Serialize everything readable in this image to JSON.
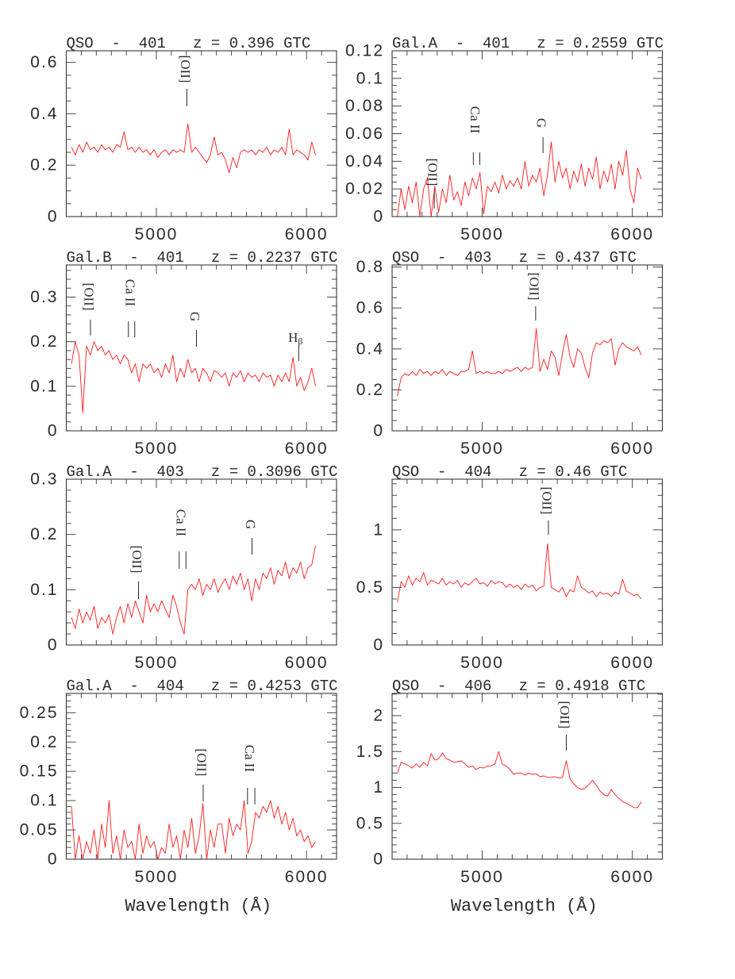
{
  "colors": {
    "spectrum": "#ff1a1a",
    "axes": "#3a3a3a"
  },
  "chart_data": [
    {
      "type": "line",
      "title": "QSO  -  401   z = 0.396 GTC",
      "xlim": [
        4400,
        6200
      ],
      "ylim": [
        0,
        0.645
      ],
      "xticks": [
        5000,
        6000
      ],
      "xtick_minor_step": 100,
      "yticks": [
        0,
        0.2,
        0.4,
        0.6
      ],
      "ytick_minor_step": 0.05,
      "wavelength_start": 4435,
      "wavelength_step": 25,
      "flux": [
        0.27,
        0.24,
        0.28,
        0.25,
        0.29,
        0.26,
        0.27,
        0.25,
        0.28,
        0.26,
        0.27,
        0.25,
        0.28,
        0.27,
        0.33,
        0.26,
        0.27,
        0.25,
        0.27,
        0.25,
        0.26,
        0.24,
        0.26,
        0.23,
        0.25,
        0.26,
        0.24,
        0.26,
        0.25,
        0.26,
        0.25,
        0.36,
        0.25,
        0.27,
        0.25,
        0.23,
        0.21,
        0.24,
        0.31,
        0.24,
        0.25,
        0.22,
        0.17,
        0.23,
        0.19,
        0.25,
        0.26,
        0.25,
        0.26,
        0.24,
        0.26,
        0.25,
        0.27,
        0.24,
        0.26,
        0.25,
        0.27,
        0.24,
        0.34,
        0.24,
        0.26,
        0.25,
        0.24,
        0.22,
        0.29,
        0.24
      ],
      "markers": [
        {
          "label": "[OII]",
          "wavelengths": [
            5203
          ]
        }
      ]
    },
    {
      "type": "line",
      "title": "Gal.A  -  401   z = 0.2559 GTC",
      "xlim": [
        4400,
        6200
      ],
      "ylim": [
        0,
        0.12
      ],
      "xticks": [
        5000,
        6000
      ],
      "xtick_minor_step": 100,
      "yticks": [
        0,
        0.02,
        0.04,
        0.06,
        0.08,
        0.1,
        0.12
      ],
      "ytick_minor_step": 0.005,
      "wavelength_start": 4435,
      "wavelength_step": 25,
      "flux": [
        0.0,
        0.02,
        0.005,
        0.022,
        0.01,
        0.025,
        0.0,
        0.02,
        0.028,
        0.0,
        0.022,
        0.003,
        0.02,
        0.01,
        0.03,
        0.012,
        0.018,
        0.008,
        0.025,
        0.015,
        0.028,
        0.02,
        0.032,
        0.002,
        0.022,
        0.018,
        0.025,
        0.017,
        0.03,
        0.02,
        0.026,
        0.022,
        0.028,
        0.02,
        0.04,
        0.022,
        0.03,
        0.025,
        0.035,
        0.015,
        0.03,
        0.054,
        0.025,
        0.04,
        0.028,
        0.035,
        0.02,
        0.033,
        0.025,
        0.038,
        0.022,
        0.035,
        0.027,
        0.043,
        0.02,
        0.033,
        0.025,
        0.038,
        0.02,
        0.04,
        0.03,
        0.048,
        0.02,
        0.01,
        0.035,
        0.027
      ],
      "markers": [
        {
          "label": "[OII]",
          "wavelengths": [
            4681
          ]
        },
        {
          "label": "Ca II",
          "wavelengths": [
            4941,
            4984
          ]
        },
        {
          "label": "G",
          "wavelengths": [
            5405
          ]
        }
      ]
    },
    {
      "type": "line",
      "title": "Gal.B  -  401   z = 0.2237 GTC",
      "xlim": [
        4400,
        6200
      ],
      "ylim": [
        0,
        0.372
      ],
      "xticks": [
        5000,
        6000
      ],
      "xtick_minor_step": 100,
      "yticks": [
        0,
        0.1,
        0.2,
        0.3
      ],
      "ytick_minor_step": 0.02,
      "wavelength_start": 4435,
      "wavelength_step": 25,
      "flux": [
        0.15,
        0.2,
        0.17,
        0.04,
        0.19,
        0.17,
        0.2,
        0.18,
        0.19,
        0.17,
        0.18,
        0.16,
        0.17,
        0.15,
        0.17,
        0.16,
        0.13,
        0.15,
        0.11,
        0.15,
        0.14,
        0.15,
        0.13,
        0.14,
        0.12,
        0.15,
        0.13,
        0.17,
        0.11,
        0.14,
        0.12,
        0.16,
        0.13,
        0.14,
        0.11,
        0.14,
        0.13,
        0.11,
        0.135,
        0.13,
        0.12,
        0.13,
        0.1,
        0.13,
        0.12,
        0.135,
        0.11,
        0.13,
        0.12,
        0.125,
        0.11,
        0.13,
        0.12,
        0.125,
        0.1,
        0.125,
        0.11,
        0.13,
        0.11,
        0.165,
        0.1,
        0.12,
        0.09,
        0.11,
        0.14,
        0.1
      ],
      "markers": [
        {
          "label": "[OII]",
          "wavelengths": [
            4561
          ]
        },
        {
          "label": "Ca II",
          "wavelengths": [
            4814,
            4856
          ]
        },
        {
          "label": "G",
          "wavelengths": [
            5267
          ]
        },
        {
          "label": "H",
          "subscript": "β",
          "wavelengths": [
            5948
          ]
        }
      ]
    },
    {
      "type": "line",
      "title": "QSO  -  403   z = 0.437 GTC",
      "xlim": [
        4400,
        6200
      ],
      "ylim": [
        0,
        0.81
      ],
      "xticks": [
        5000,
        6000
      ],
      "xtick_minor_step": 100,
      "yticks": [
        0,
        0.2,
        0.4,
        0.6,
        0.8
      ],
      "ytick_minor_step": 0.05,
      "wavelength_start": 4435,
      "wavelength_step": 25,
      "flux": [
        0.17,
        0.26,
        0.28,
        0.27,
        0.29,
        0.27,
        0.3,
        0.28,
        0.29,
        0.27,
        0.29,
        0.28,
        0.3,
        0.27,
        0.29,
        0.28,
        0.27,
        0.29,
        0.29,
        0.3,
        0.39,
        0.28,
        0.29,
        0.28,
        0.29,
        0.28,
        0.28,
        0.29,
        0.28,
        0.3,
        0.29,
        0.3,
        0.31,
        0.29,
        0.31,
        0.3,
        0.31,
        0.5,
        0.29,
        0.35,
        0.3,
        0.39,
        0.36,
        0.27,
        0.38,
        0.47,
        0.36,
        0.31,
        0.4,
        0.38,
        0.31,
        0.26,
        0.38,
        0.43,
        0.42,
        0.44,
        0.43,
        0.45,
        0.32,
        0.4,
        0.43,
        0.41,
        0.4,
        0.39,
        0.41,
        0.37
      ],
      "markers": [
        {
          "label": "[OII]",
          "wavelengths": [
            5356
          ]
        }
      ]
    },
    {
      "type": "line",
      "title": "Gal.A  -  403   z = 0.3096 GTC",
      "xlim": [
        4400,
        6200
      ],
      "ylim": [
        0,
        0.3
      ],
      "xticks": [
        5000,
        6000
      ],
      "xtick_minor_step": 100,
      "yticks": [
        0,
        0.1,
        0.2,
        0.3
      ],
      "ytick_minor_step": 0.02,
      "wavelength_start": 4435,
      "wavelength_step": 25,
      "flux": [
        0.05,
        0.03,
        0.065,
        0.04,
        0.06,
        0.045,
        0.07,
        0.03,
        0.05,
        0.04,
        0.055,
        0.02,
        0.05,
        0.07,
        0.04,
        0.075,
        0.05,
        0.08,
        0.06,
        0.04,
        0.09,
        0.06,
        0.075,
        0.06,
        0.08,
        0.065,
        0.05,
        0.09,
        0.07,
        0.04,
        0.02,
        0.1,
        0.11,
        0.1,
        0.12,
        0.09,
        0.11,
        0.1,
        0.12,
        0.095,
        0.11,
        0.12,
        0.1,
        0.125,
        0.11,
        0.13,
        0.1,
        0.12,
        0.08,
        0.12,
        0.1,
        0.13,
        0.12,
        0.14,
        0.11,
        0.135,
        0.125,
        0.15,
        0.12,
        0.14,
        0.13,
        0.15,
        0.12,
        0.14,
        0.145,
        0.18
      ],
      "markers": [
        {
          "label": "[OII]",
          "wavelengths": [
            4881
          ]
        },
        {
          "label": "Ca II",
          "wavelengths": [
            5152,
            5197
          ]
        },
        {
          "label": "G",
          "wavelengths": [
            5637
          ]
        }
      ]
    },
    {
      "type": "line",
      "title": "QSO  -  404   z = 0.46 GTC",
      "xlim": [
        4400,
        6200
      ],
      "ylim": [
        0,
        1.44
      ],
      "xticks": [
        5000,
        6000
      ],
      "xtick_minor_step": 100,
      "yticks": [
        0,
        0.5,
        1
      ],
      "ytick_minor_step": 0.1,
      "wavelength_start": 4435,
      "wavelength_step": 25,
      "flux": [
        0.37,
        0.55,
        0.5,
        0.6,
        0.52,
        0.58,
        0.55,
        0.63,
        0.52,
        0.56,
        0.55,
        0.53,
        0.58,
        0.52,
        0.55,
        0.53,
        0.56,
        0.5,
        0.54,
        0.52,
        0.55,
        0.58,
        0.53,
        0.54,
        0.51,
        0.56,
        0.53,
        0.55,
        0.54,
        0.5,
        0.53,
        0.5,
        0.52,
        0.48,
        0.53,
        0.5,
        0.52,
        0.47,
        0.5,
        0.51,
        0.88,
        0.5,
        0.48,
        0.46,
        0.5,
        0.42,
        0.48,
        0.46,
        0.6,
        0.5,
        0.48,
        0.45,
        0.47,
        0.42,
        0.46,
        0.44,
        0.45,
        0.42,
        0.46,
        0.44,
        0.57,
        0.47,
        0.45,
        0.43,
        0.44,
        0.4
      ],
      "markers": [
        {
          "label": "[OII]",
          "wavelengths": [
            5441
          ]
        }
      ]
    },
    {
      "type": "line",
      "title": "Gal.A  -  404   z = 0.4253 GTC",
      "xlabel": "Wavelength (Å)",
      "xlim": [
        4400,
        6200
      ],
      "ylim": [
        0,
        0.283
      ],
      "xticks": [
        5000,
        6000
      ],
      "xtick_minor_step": 100,
      "yticks": [
        0,
        0.05,
        0.1,
        0.15,
        0.2,
        0.25
      ],
      "ytick_minor_step": 0.01,
      "wavelength_start": 4435,
      "wavelength_step": 25,
      "flux": [
        0.09,
        0.0,
        0.04,
        0.0,
        0.03,
        0.01,
        0.05,
        0.0,
        0.06,
        0.02,
        0.1,
        0.01,
        0.04,
        0.0,
        0.05,
        0.02,
        0.03,
        0.0,
        0.06,
        0.01,
        0.04,
        0.02,
        0.03,
        0.0,
        0.02,
        0.01,
        0.06,
        0.02,
        0.04,
        0.0,
        0.05,
        0.02,
        0.07,
        0.01,
        0.04,
        0.095,
        0.0,
        0.05,
        0.02,
        0.06,
        0.06,
        0.01,
        0.07,
        0.04,
        0.06,
        0.05,
        0.1,
        0.01,
        0.03,
        0.08,
        0.07,
        0.09,
        0.08,
        0.1,
        0.07,
        0.09,
        0.06,
        0.08,
        0.05,
        0.07,
        0.04,
        0.05,
        0.03,
        0.04,
        0.02,
        0.03
      ],
      "markers": [
        {
          "label": "[OII]",
          "wavelengths": [
            5312
          ]
        },
        {
          "label": "Ca II",
          "wavelengths": [
            5607,
            5656
          ]
        }
      ]
    },
    {
      "type": "line",
      "title": "QSO  -  406   z = 0.4918 GTC",
      "xlabel": "Wavelength (Å)",
      "xlim": [
        4400,
        6200
      ],
      "ylim": [
        0,
        2.31
      ],
      "xticks": [
        5000,
        6000
      ],
      "xtick_minor_step": 100,
      "yticks": [
        0,
        0.5,
        1,
        1.5,
        2
      ],
      "ytick_minor_step": 0.1,
      "wavelength_start": 4435,
      "wavelength_step": 25,
      "flux": [
        1.2,
        1.35,
        1.33,
        1.3,
        1.27,
        1.33,
        1.28,
        1.35,
        1.3,
        1.47,
        1.38,
        1.4,
        1.48,
        1.4,
        1.38,
        1.35,
        1.36,
        1.37,
        1.33,
        1.28,
        1.3,
        1.25,
        1.28,
        1.27,
        1.3,
        1.3,
        1.33,
        1.5,
        1.32,
        1.3,
        1.25,
        1.18,
        1.2,
        1.2,
        1.17,
        1.2,
        1.18,
        1.19,
        1.15,
        1.16,
        1.14,
        1.14,
        1.15,
        1.13,
        1.14,
        1.37,
        1.12,
        1.05,
        1.0,
        0.97,
        0.99,
        1.04,
        1.1,
        1.03,
        0.95,
        0.9,
        0.88,
        0.97,
        0.9,
        0.85,
        0.8,
        0.78,
        0.75,
        0.72,
        0.72,
        0.8
      ],
      "markers": [
        {
          "label": "[OII]",
          "wavelengths": [
            5560
          ]
        }
      ]
    }
  ]
}
